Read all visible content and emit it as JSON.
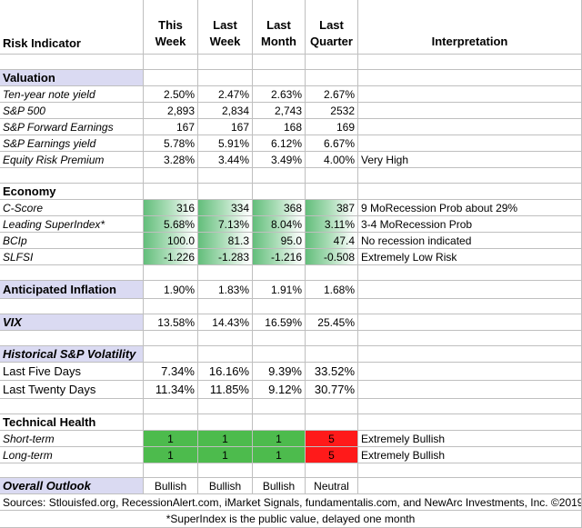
{
  "header": {
    "label": "Risk Indicator",
    "columns": [
      [
        "This",
        "Week"
      ],
      [
        "Last",
        "Week"
      ],
      [
        "Last",
        "Month"
      ],
      [
        "Last",
        "Quarter"
      ]
    ],
    "interpretation": "Interpretation"
  },
  "sections": [
    {
      "title": "Valuation",
      "rows": [
        {
          "label": "Ten-year note yield",
          "values": [
            "2.50%",
            "2.47%",
            "2.63%",
            "2.67%"
          ]
        },
        {
          "label": "S&P 500",
          "values": [
            "2,893",
            "2,834",
            "2,743",
            "2532"
          ]
        },
        {
          "label": "S&P Forward Earnings",
          "values": [
            "167",
            "167",
            "168",
            "169"
          ]
        },
        {
          "label": "S&P Earnings yield",
          "values": [
            "5.78%",
            "5.91%",
            "6.12%",
            "6.67%"
          ]
        },
        {
          "label": "Equity Risk Premium",
          "values": [
            "3.28%",
            "3.44%",
            "3.49%",
            "4.00%"
          ],
          "interpretation": "Very High"
        }
      ]
    },
    {
      "title": "Economy",
      "rows": [
        {
          "label": "C-Score",
          "values": [
            "316",
            "334",
            "368",
            "387"
          ],
          "interpretation": "9 MoRecession Prob about 29%"
        },
        {
          "label": "Leading SuperIndex*",
          "values": [
            "5.68%",
            "7.13%",
            "8.04%",
            "3.11%"
          ],
          "interpretation": "3-4 MoRecession Prob"
        },
        {
          "label": "BCIp",
          "values": [
            "100.0",
            "81.3",
            "95.0",
            "47.4"
          ],
          "interpretation": "No recession indicated"
        },
        {
          "label": "SLFSI",
          "values": [
            "-1.226",
            "-1.283",
            "-1.216",
            "-0.508"
          ],
          "interpretation": "Extremely Low Risk"
        }
      ]
    },
    {
      "title": "Anticipated Inflation",
      "values": [
        "1.90%",
        "1.83%",
        "1.91%",
        "1.68%"
      ],
      "rows": []
    },
    {
      "title": "VIX",
      "values": [
        "13.58%",
        "14.43%",
        "16.59%",
        "25.45%"
      ],
      "rows": []
    },
    {
      "title": "Historical  S&P Volatility",
      "rows": [
        {
          "label": "Last Five Days",
          "values": [
            "7.34%",
            "16.16%",
            "9.39%",
            "33.52%"
          ]
        },
        {
          "label": "Last Twenty Days",
          "values": [
            "11.34%",
            "11.85%",
            "9.12%",
            "30.77%"
          ]
        }
      ]
    },
    {
      "title": "Technical Health",
      "rows": [
        {
          "label": "Short-term",
          "values": [
            "1",
            "1",
            "1",
            "5"
          ],
          "interpretation": "Extremely Bullish"
        },
        {
          "label": "Long-term",
          "values": [
            "1",
            "1",
            "1",
            "5"
          ],
          "interpretation": "Extremely Bullish"
        }
      ]
    },
    {
      "title": "Overall Outlook",
      "values": [
        "Bullish",
        "Bullish",
        "Bullish",
        "Neutral"
      ],
      "rows": []
    }
  ],
  "sources": "Sources: Stlouisfed.org, RecessionAlert.com, iMarket Signals, fundamentalis.com, and NewArc Investments, Inc. ©2019",
  "footnote": "*SuperIndex is the public value, delayed one month"
}
